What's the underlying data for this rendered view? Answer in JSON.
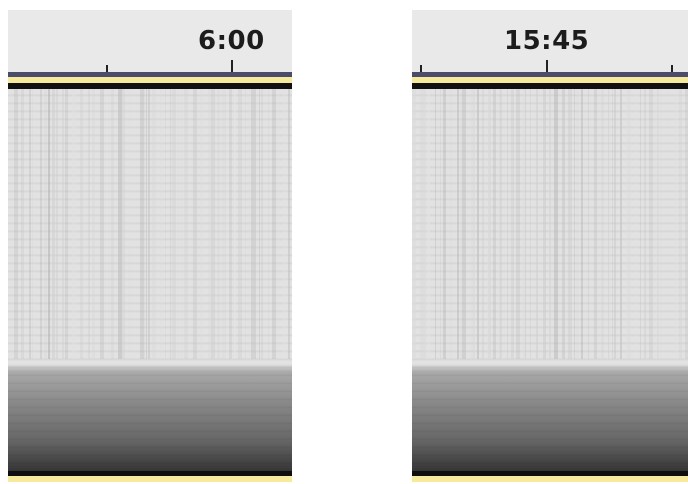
{
  "panels": [
    {
      "time_label": "6:00"
    },
    {
      "time_label": "15:45"
    }
  ],
  "colors": {
    "ruler_bg": "#e9e9e9",
    "ruler_line": "#4a4d6a",
    "highlight_yellow": "#f7ea9c",
    "spectrogram_bg": "#e2e2e2"
  }
}
